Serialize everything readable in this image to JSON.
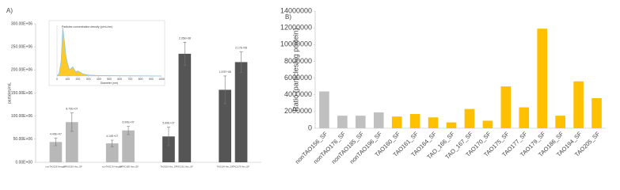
{
  "chart_data": [
    {
      "type": "bar",
      "label": "A)",
      "y_label": "particles/mL",
      "categories": [
        "nonTAO156 Hex_SF",
        "nonTAO196 Hex_SF",
        "nonTAO176 Hex_EF",
        "nonTAO185 Hex_EF",
        "TAO160 Hex_SF",
        "TAO161 Hex_SF",
        "TAO164 Hex_EF",
        "TAO179 Hex_EF"
      ],
      "values": [
        44000000,
        87000000,
        41000000,
        69000000,
        56000000,
        235000000,
        157000000,
        217000000
      ],
      "value_labels": [
        "4.40E+07",
        "8.70E+07",
        "4.10E+07",
        "6.90E+07",
        "5.60E+07",
        "2.35E+08",
        "1.57E+08",
        "2.17E+08"
      ],
      "errors": [
        8000000,
        20000000,
        7000000,
        9000000,
        20000000,
        25000000,
        30000000,
        22000000
      ],
      "colors": [
        "#b8b8b8",
        "#b8b8b8",
        "#b8b8b8",
        "#b8b8b8",
        "#555555",
        "#555555",
        "#555555",
        "#555555"
      ],
      "ylim": [
        0,
        300000000
      ],
      "yticks": [
        {
          "value": 0,
          "label": "0.00E+00"
        },
        {
          "value": 50000000,
          "label": "50.00E+06"
        },
        {
          "value": 100000000,
          "label": "100.00E+06"
        },
        {
          "value": 150000000,
          "label": "150.00E+06"
        },
        {
          "value": 200000000,
          "label": "200.00E+06"
        },
        {
          "value": 250000000,
          "label": "250.00E+06"
        },
        {
          "value": 300000000,
          "label": "300.00E+06"
        }
      ]
    },
    {
      "type": "line",
      "x_label": "Diameter (nm)",
      "y_label": "Particles concentration density (p/mL/nm)",
      "x": [
        0,
        20,
        40,
        55,
        70,
        85,
        100,
        120,
        150,
        180,
        200,
        250,
        300,
        400,
        600,
        800,
        1000
      ],
      "values": [
        0,
        5,
        30,
        95,
        70,
        40,
        25,
        12,
        18,
        8,
        10,
        4,
        2,
        1,
        0.5,
        0.3,
        0
      ],
      "color": "#ffc000",
      "line_color": "#8cc8e8",
      "xlim": [
        0,
        1000
      ],
      "ylim": [
        0,
        100
      ],
      "xticks": [
        0,
        100,
        200,
        300,
        400,
        500,
        600,
        700,
        800,
        900,
        1000
      ]
    },
    {
      "type": "bar",
      "label": "B)",
      "y_label": "Ratio (particles/ug protein)",
      "categories": [
        "nonTAO156_SF",
        "nonTAO176_SF",
        "nonTAO185_SF",
        "nonTAO196_SF",
        "TAO160_SF",
        "TAO161_SF",
        "TAO164_SF",
        "TAO_166_SF",
        "TAO_167_SF",
        "TAO170_SF",
        "TAO175_SF",
        "TAO177_SF",
        "TAO179_SF",
        "TAO186_SF",
        "TAO194_SF",
        "TAO205_SF"
      ],
      "values": [
        4400000,
        1500000,
        1500000,
        1900000,
        1400000,
        1700000,
        1300000,
        700000,
        2300000,
        900000,
        5000000,
        2500000,
        11900000,
        1500000,
        5600000,
        3600000
      ],
      "colors": [
        "#c0c0c0",
        "#c0c0c0",
        "#c0c0c0",
        "#c0c0c0",
        "#ffc000",
        "#ffc000",
        "#ffc000",
        "#ffc000",
        "#ffc000",
        "#ffc000",
        "#ffc000",
        "#ffc000",
        "#ffc000",
        "#ffc000",
        "#ffc000",
        "#ffc000"
      ],
      "ylim": [
        0,
        14000000
      ],
      "yticks": [
        0,
        2000000,
        4000000,
        6000000,
        8000000,
        10000000,
        12000000,
        14000000
      ]
    }
  ]
}
